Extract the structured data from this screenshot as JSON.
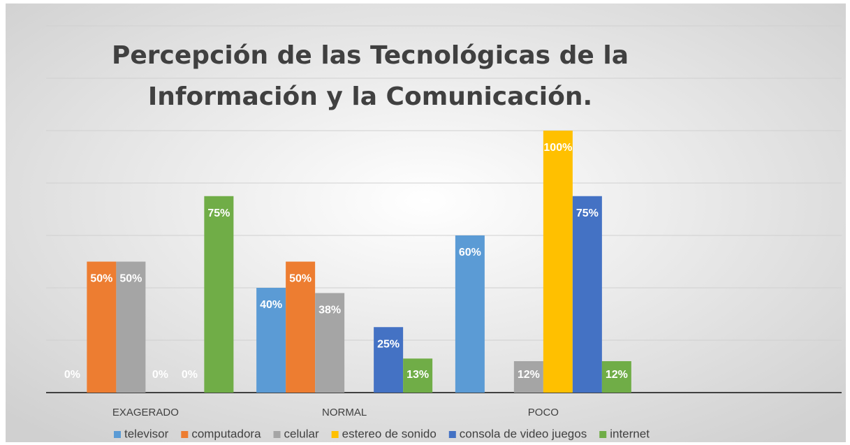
{
  "chart_data": {
    "type": "bar",
    "title": [
      "Percepción de las Tecnológicas de la",
      "Información y la Comunicación."
    ],
    "categories": [
      "EXAGERADO",
      "NORMAL",
      "POCO",
      null
    ],
    "series": [
      {
        "name": "televisor",
        "color": "#5b9bd5",
        "values": [
          0,
          40,
          60,
          null
        ],
        "value_labels": [
          "0%",
          "40%",
          "60%",
          null
        ]
      },
      {
        "name": "computadora",
        "color": "#ed7d31",
        "values": [
          50,
          50,
          null,
          null
        ],
        "value_labels": [
          "50%",
          "50%",
          null,
          null
        ]
      },
      {
        "name": "celular",
        "color": "#a5a5a5",
        "values": [
          50,
          38,
          12,
          null
        ],
        "value_labels": [
          "50%",
          "38%",
          "12%",
          null
        ]
      },
      {
        "name": "estereo de sonido",
        "color": "#ffc000",
        "values": [
          0,
          null,
          100,
          null
        ],
        "value_labels": [
          "0%",
          null,
          "100%",
          null
        ]
      },
      {
        "name": "consola de video juegos",
        "color": "#4472c4",
        "values": [
          0,
          25,
          75,
          null
        ],
        "value_labels": [
          "0%",
          "25%",
          "75%",
          null
        ]
      },
      {
        "name": "internet",
        "color": "#70ad47",
        "values": [
          75,
          13,
          12,
          null
        ],
        "value_labels": [
          "75%",
          "13%",
          "12%",
          null
        ]
      }
    ],
    "ylim": [
      0,
      140
    ],
    "yticks": [
      0,
      20,
      40,
      60,
      80,
      100,
      120,
      140
    ],
    "grid": true,
    "legend": "bottom"
  }
}
